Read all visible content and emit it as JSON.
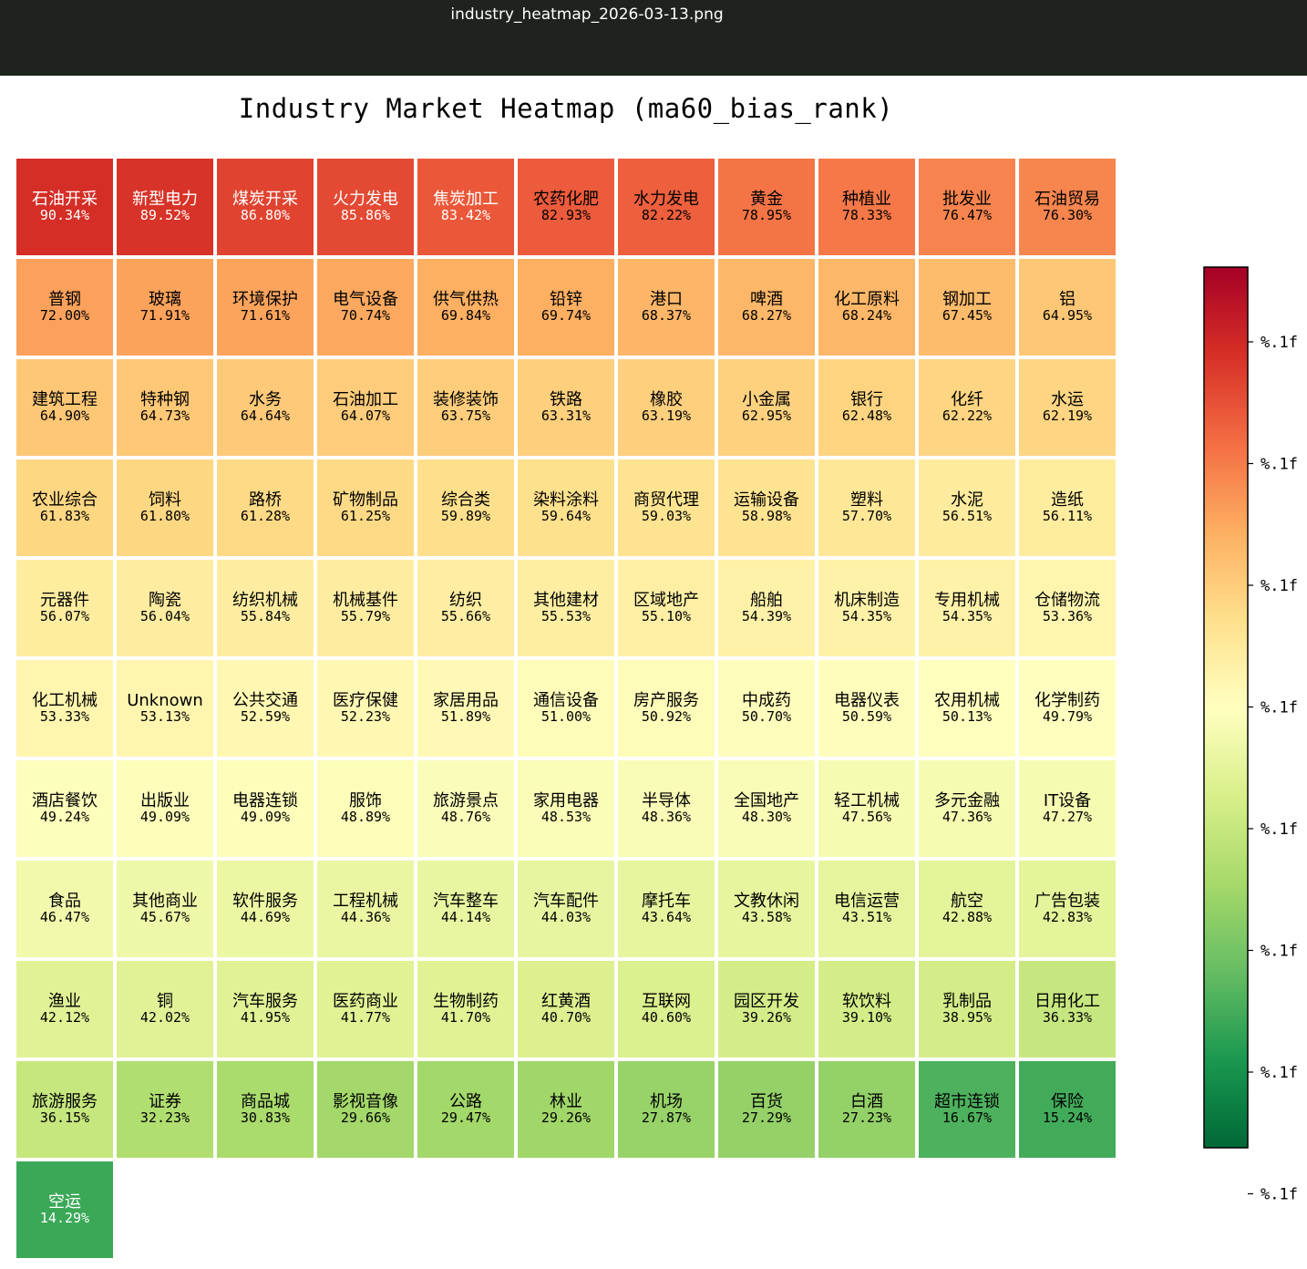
{
  "window": {
    "title": "industry_heatmap_2026-03-13.png"
  },
  "colors": {
    "titlebar_bg": "#1f231e",
    "cell_border": "#ffffff",
    "colormap": "RdYlGn"
  },
  "chart_data": {
    "type": "heatmap",
    "title": "Industry Market Heatmap (ma60_bias_rank)",
    "columns": 11,
    "value_range": [
      0,
      100
    ],
    "value_unit": "%",
    "colorbar": {
      "colormap": "RdYlGn",
      "direction": "high values red, low values green",
      "tick_labels": [
        "%.1f",
        "%.1f",
        "%.1f",
        "%.1f",
        "%.1f",
        "%.1f",
        "%.1f",
        "%.1f"
      ]
    },
    "cells": [
      {
        "name": "石油开采",
        "value": 90.34,
        "label": "90.34%"
      },
      {
        "name": "新型电力",
        "value": 89.52,
        "label": "89.52%"
      },
      {
        "name": "煤炭开采",
        "value": 86.8,
        "label": "86.80%"
      },
      {
        "name": "火力发电",
        "value": 85.86,
        "label": "85.86%"
      },
      {
        "name": "焦炭加工",
        "value": 83.42,
        "label": "83.42%"
      },
      {
        "name": "农药化肥",
        "value": 82.93,
        "label": "82.93%"
      },
      {
        "name": "水力发电",
        "value": 82.22,
        "label": "82.22%"
      },
      {
        "name": "黄金",
        "value": 78.95,
        "label": "78.95%"
      },
      {
        "name": "种植业",
        "value": 78.33,
        "label": "78.33%"
      },
      {
        "name": "批发业",
        "value": 76.47,
        "label": "76.47%"
      },
      {
        "name": "石油贸易",
        "value": 76.3,
        "label": "76.30%"
      },
      {
        "name": "普钢",
        "value": 72.0,
        "label": "72.00%"
      },
      {
        "name": "玻璃",
        "value": 71.91,
        "label": "71.91%"
      },
      {
        "name": "环境保护",
        "value": 71.61,
        "label": "71.61%"
      },
      {
        "name": "电气设备",
        "value": 70.74,
        "label": "70.74%"
      },
      {
        "name": "供气供热",
        "value": 69.84,
        "label": "69.84%"
      },
      {
        "name": "铅锌",
        "value": 69.74,
        "label": "69.74%"
      },
      {
        "name": "港口",
        "value": 68.37,
        "label": "68.37%"
      },
      {
        "name": "啤酒",
        "value": 68.27,
        "label": "68.27%"
      },
      {
        "name": "化工原料",
        "value": 68.24,
        "label": "68.24%"
      },
      {
        "name": "钢加工",
        "value": 67.45,
        "label": "67.45%"
      },
      {
        "name": "铝",
        "value": 64.95,
        "label": "64.95%"
      },
      {
        "name": "建筑工程",
        "value": 64.9,
        "label": "64.90%"
      },
      {
        "name": "特种钢",
        "value": 64.73,
        "label": "64.73%"
      },
      {
        "name": "水务",
        "value": 64.64,
        "label": "64.64%"
      },
      {
        "name": "石油加工",
        "value": 64.07,
        "label": "64.07%"
      },
      {
        "name": "装修装饰",
        "value": 63.75,
        "label": "63.75%"
      },
      {
        "name": "铁路",
        "value": 63.31,
        "label": "63.31%"
      },
      {
        "name": "橡胶",
        "value": 63.19,
        "label": "63.19%"
      },
      {
        "name": "小金属",
        "value": 62.95,
        "label": "62.95%"
      },
      {
        "name": "银行",
        "value": 62.48,
        "label": "62.48%"
      },
      {
        "name": "化纤",
        "value": 62.22,
        "label": "62.22%"
      },
      {
        "name": "水运",
        "value": 62.19,
        "label": "62.19%"
      },
      {
        "name": "农业综合",
        "value": 61.83,
        "label": "61.83%"
      },
      {
        "name": "饲料",
        "value": 61.8,
        "label": "61.80%"
      },
      {
        "name": "路桥",
        "value": 61.28,
        "label": "61.28%"
      },
      {
        "name": "矿物制品",
        "value": 61.25,
        "label": "61.25%"
      },
      {
        "name": "综合类",
        "value": 59.89,
        "label": "59.89%"
      },
      {
        "name": "染料涂料",
        "value": 59.64,
        "label": "59.64%"
      },
      {
        "name": "商贸代理",
        "value": 59.03,
        "label": "59.03%"
      },
      {
        "name": "运输设备",
        "value": 58.98,
        "label": "58.98%"
      },
      {
        "name": "塑料",
        "value": 57.7,
        "label": "57.70%"
      },
      {
        "name": "水泥",
        "value": 56.51,
        "label": "56.51%"
      },
      {
        "name": "造纸",
        "value": 56.11,
        "label": "56.11%"
      },
      {
        "name": "元器件",
        "value": 56.07,
        "label": "56.07%"
      },
      {
        "name": "陶瓷",
        "value": 56.04,
        "label": "56.04%"
      },
      {
        "name": "纺织机械",
        "value": 55.84,
        "label": "55.84%"
      },
      {
        "name": "机械基件",
        "value": 55.79,
        "label": "55.79%"
      },
      {
        "name": "纺织",
        "value": 55.66,
        "label": "55.66%"
      },
      {
        "name": "其他建材",
        "value": 55.53,
        "label": "55.53%"
      },
      {
        "name": "区域地产",
        "value": 55.1,
        "label": "55.10%"
      },
      {
        "name": "船舶",
        "value": 54.39,
        "label": "54.39%"
      },
      {
        "name": "机床制造",
        "value": 54.35,
        "label": "54.35%"
      },
      {
        "name": "专用机械",
        "value": 54.35,
        "label": "54.35%"
      },
      {
        "name": "仓储物流",
        "value": 53.36,
        "label": "53.36%"
      },
      {
        "name": "化工机械",
        "value": 53.33,
        "label": "53.33%"
      },
      {
        "name": "Unknown",
        "value": 53.13,
        "label": "53.13%"
      },
      {
        "name": "公共交通",
        "value": 52.59,
        "label": "52.59%"
      },
      {
        "name": "医疗保健",
        "value": 52.23,
        "label": "52.23%"
      },
      {
        "name": "家居用品",
        "value": 51.89,
        "label": "51.89%"
      },
      {
        "name": "通信设备",
        "value": 51.0,
        "label": "51.00%"
      },
      {
        "name": "房产服务",
        "value": 50.92,
        "label": "50.92%"
      },
      {
        "name": "中成药",
        "value": 50.7,
        "label": "50.70%"
      },
      {
        "name": "电器仪表",
        "value": 50.59,
        "label": "50.59%"
      },
      {
        "name": "农用机械",
        "value": 50.13,
        "label": "50.13%"
      },
      {
        "name": "化学制药",
        "value": 49.79,
        "label": "49.79%"
      },
      {
        "name": "酒店餐饮",
        "value": 49.24,
        "label": "49.24%"
      },
      {
        "name": "出版业",
        "value": 49.09,
        "label": "49.09%"
      },
      {
        "name": "电器连锁",
        "value": 49.09,
        "label": "49.09%"
      },
      {
        "name": "服饰",
        "value": 48.89,
        "label": "48.89%"
      },
      {
        "name": "旅游景点",
        "value": 48.76,
        "label": "48.76%"
      },
      {
        "name": "家用电器",
        "value": 48.53,
        "label": "48.53%"
      },
      {
        "name": "半导体",
        "value": 48.36,
        "label": "48.36%"
      },
      {
        "name": "全国地产",
        "value": 48.3,
        "label": "48.30%"
      },
      {
        "name": "轻工机械",
        "value": 47.56,
        "label": "47.56%"
      },
      {
        "name": "多元金融",
        "value": 47.36,
        "label": "47.36%"
      },
      {
        "name": "IT设备",
        "value": 47.27,
        "label": "47.27%"
      },
      {
        "name": "食品",
        "value": 46.47,
        "label": "46.47%"
      },
      {
        "name": "其他商业",
        "value": 45.67,
        "label": "45.67%"
      },
      {
        "name": "软件服务",
        "value": 44.69,
        "label": "44.69%"
      },
      {
        "name": "工程机械",
        "value": 44.36,
        "label": "44.36%"
      },
      {
        "name": "汽车整车",
        "value": 44.14,
        "label": "44.14%"
      },
      {
        "name": "汽车配件",
        "value": 44.03,
        "label": "44.03%"
      },
      {
        "name": "摩托车",
        "value": 43.64,
        "label": "43.64%"
      },
      {
        "name": "文教休闲",
        "value": 43.58,
        "label": "43.58%"
      },
      {
        "name": "电信运营",
        "value": 43.51,
        "label": "43.51%"
      },
      {
        "name": "航空",
        "value": 42.88,
        "label": "42.88%"
      },
      {
        "name": "广告包装",
        "value": 42.83,
        "label": "42.83%"
      },
      {
        "name": "渔业",
        "value": 42.12,
        "label": "42.12%"
      },
      {
        "name": "铜",
        "value": 42.02,
        "label": "42.02%"
      },
      {
        "name": "汽车服务",
        "value": 41.95,
        "label": "41.95%"
      },
      {
        "name": "医药商业",
        "value": 41.77,
        "label": "41.77%"
      },
      {
        "name": "生物制药",
        "value": 41.7,
        "label": "41.70%"
      },
      {
        "name": "红黄酒",
        "value": 40.7,
        "label": "40.70%"
      },
      {
        "name": "互联网",
        "value": 40.6,
        "label": "40.60%"
      },
      {
        "name": "园区开发",
        "value": 39.26,
        "label": "39.26%"
      },
      {
        "name": "软饮料",
        "value": 39.1,
        "label": "39.10%"
      },
      {
        "name": "乳制品",
        "value": 38.95,
        "label": "38.95%"
      },
      {
        "name": "日用化工",
        "value": 36.33,
        "label": "36.33%"
      },
      {
        "name": "旅游服务",
        "value": 36.15,
        "label": "36.15%"
      },
      {
        "name": "证券",
        "value": 32.23,
        "label": "32.23%"
      },
      {
        "name": "商品城",
        "value": 30.83,
        "label": "30.83%"
      },
      {
        "name": "影视音像",
        "value": 29.66,
        "label": "29.66%"
      },
      {
        "name": "公路",
        "value": 29.47,
        "label": "29.47%"
      },
      {
        "name": "林业",
        "value": 29.26,
        "label": "29.26%"
      },
      {
        "name": "机场",
        "value": 27.87,
        "label": "27.87%"
      },
      {
        "name": "百货",
        "value": 27.29,
        "label": "27.29%"
      },
      {
        "name": "白酒",
        "value": 27.23,
        "label": "27.23%"
      },
      {
        "name": "超市连锁",
        "value": 16.67,
        "label": "16.67%"
      },
      {
        "name": "保险",
        "value": 15.24,
        "label": "15.24%"
      },
      {
        "name": "空运",
        "value": 14.29,
        "label": "14.29%"
      }
    ]
  }
}
